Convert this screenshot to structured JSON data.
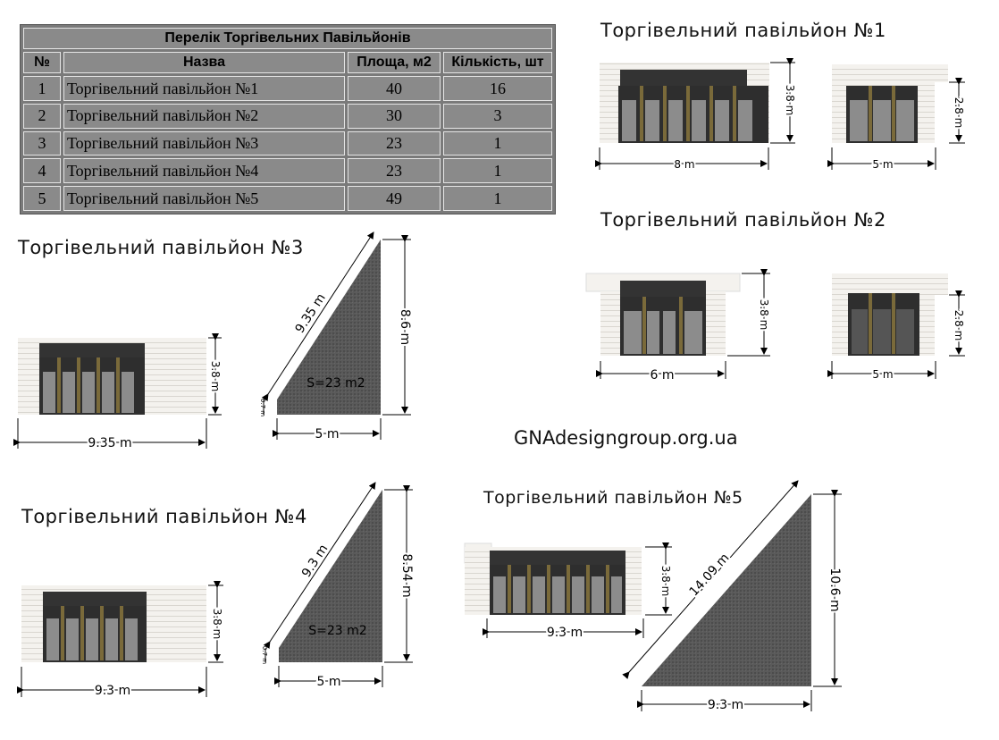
{
  "table": {
    "title": "Перелік Торгівельних Павільйонів",
    "headers": [
      "№",
      "Назва",
      "Площа, м2",
      "Кількість, шт"
    ],
    "rows": [
      [
        "1",
        "Торгівельний павільйон №1",
        "40",
        "16"
      ],
      [
        "2",
        "Торгівельний павільйон №2",
        "30",
        "3"
      ],
      [
        "3",
        "Торгівельний павільйон №3",
        "23",
        "1"
      ],
      [
        "4",
        "Торгівельний павільйон №4",
        "23",
        "1"
      ],
      [
        "5",
        "Торгівельний павільйон №5",
        "49",
        "1"
      ]
    ]
  },
  "brand": "GNAdesigngroup.org.ua",
  "pavilions": {
    "p1": {
      "title": "Торгівельний павільйон №1",
      "front_width": "8 m",
      "front_height": "3.8 m",
      "side_width": "5 m",
      "side_height": "2.8 m"
    },
    "p2": {
      "title": "Торгівельний павільйон №2",
      "front_width": "6 m",
      "front_height": "3.8 m",
      "side_width": "5 m",
      "side_height": "2.8 m"
    },
    "p3": {
      "title": "Торгівельний павільйон №3",
      "front_width": "9.35 m",
      "front_height": "3.8 m",
      "hyp": "9.35 m",
      "vert": "8.6 m",
      "base": "5 m",
      "small": "0.7 m",
      "area": "S=23 m2"
    },
    "p4": {
      "title": "Торгівельний павільйон №4",
      "front_width": "9.3 m",
      "front_height": "3.8 m",
      "hyp": "9.3 m",
      "vert": "8.54 m",
      "base": "5 m",
      "small": "0.7 m",
      "area": "S=23 m2"
    },
    "p5": {
      "title": "Торгівельний павільйон №5",
      "front_width": "9.3 m",
      "front_height": "3.8 m",
      "hyp": "14.09 m",
      "vert": "10.6 m",
      "base": "9.3 m"
    }
  }
}
